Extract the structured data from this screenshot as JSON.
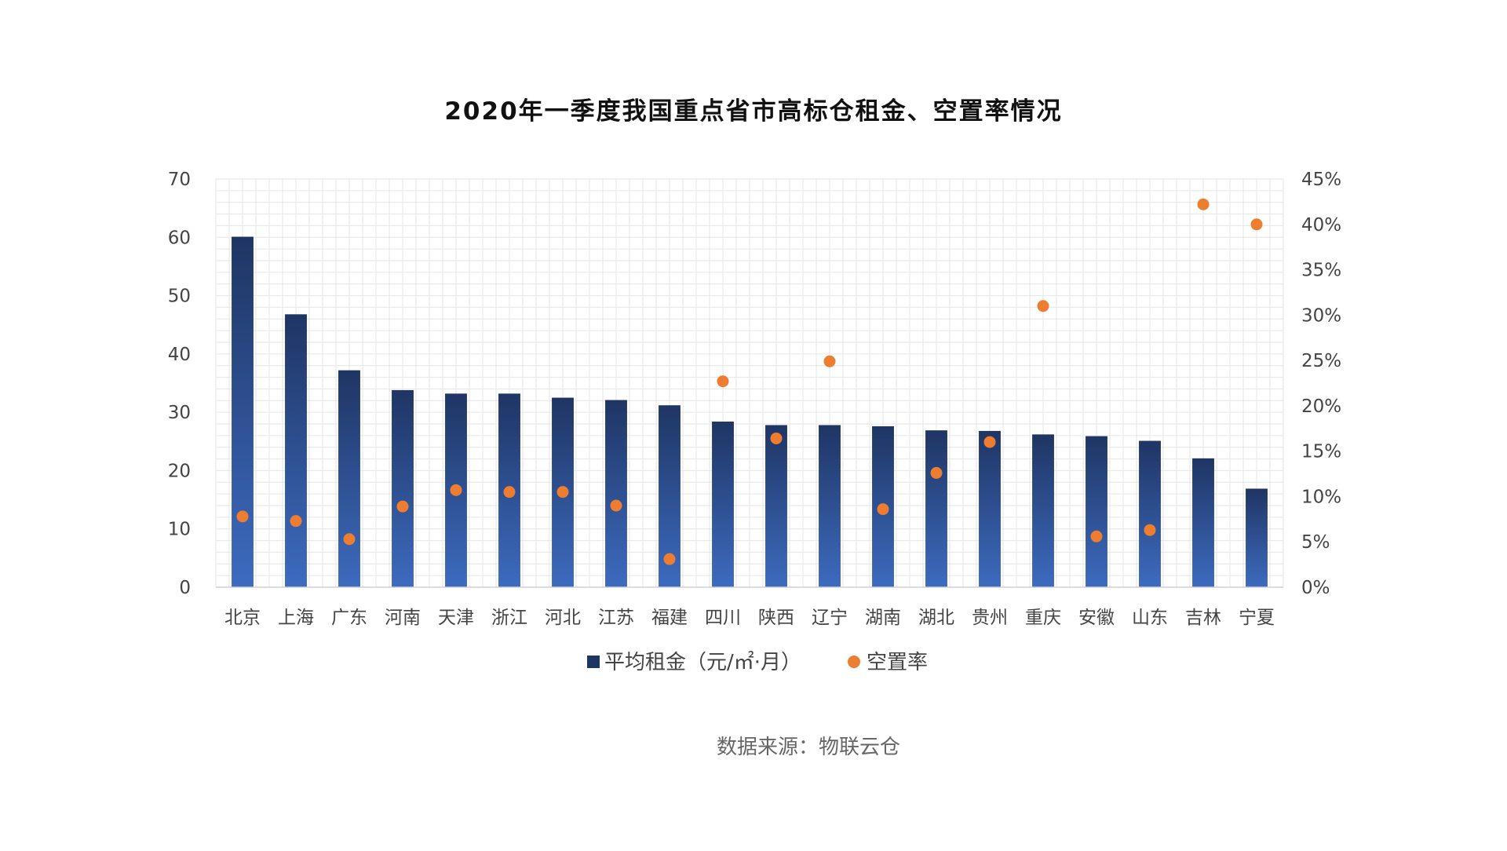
{
  "chart_data": {
    "type": "bar",
    "title": "2020年一季度我国重点省市高标仓租金、空置率情况",
    "source": "数据来源：物联云仓",
    "categories": [
      "北京",
      "上海",
      "广东",
      "河南",
      "天津",
      "浙江",
      "河北",
      "江苏",
      "福建",
      "四川",
      "陕西",
      "辽宁",
      "湖南",
      "湖北",
      "贵州",
      "重庆",
      "安徽",
      "山东",
      "吉林",
      "宁夏"
    ],
    "series": [
      {
        "name": "平均租金（元/㎡·月）",
        "type": "bar",
        "axis": "left",
        "values": [
          60.1,
          46.8,
          37.2,
          33.8,
          33.2,
          33.2,
          32.5,
          32.1,
          31.2,
          28.4,
          27.8,
          27.8,
          27.6,
          26.9,
          26.8,
          26.2,
          25.9,
          25.1,
          22.1,
          16.9
        ]
      },
      {
        "name": "空置率",
        "type": "scatter",
        "axis": "right",
        "values": [
          7.8,
          7.3,
          5.3,
          8.9,
          10.7,
          10.5,
          10.5,
          9.0,
          3.1,
          22.7,
          16.4,
          24.9,
          8.6,
          12.6,
          16.0,
          31.0,
          5.6,
          6.3,
          42.2,
          40.0
        ]
      }
    ],
    "y_left": {
      "min": 0,
      "max": 70,
      "ticks": [
        0,
        10,
        20,
        30,
        40,
        50,
        60,
        70
      ]
    },
    "y_right": {
      "min": 0,
      "max": 45,
      "ticks": [
        0,
        5,
        10,
        15,
        20,
        25,
        30,
        35,
        40,
        45
      ],
      "unit": "%"
    },
    "legend_position": "bottom",
    "grid": true,
    "colors": {
      "bar_top": "#1f3564",
      "bar_bottom": "#3d6bbf",
      "dot": "#ed7d31",
      "title": "#111111",
      "axis_text": "#444444",
      "source_text": "#666666",
      "grid": "#e6e6e6"
    }
  }
}
